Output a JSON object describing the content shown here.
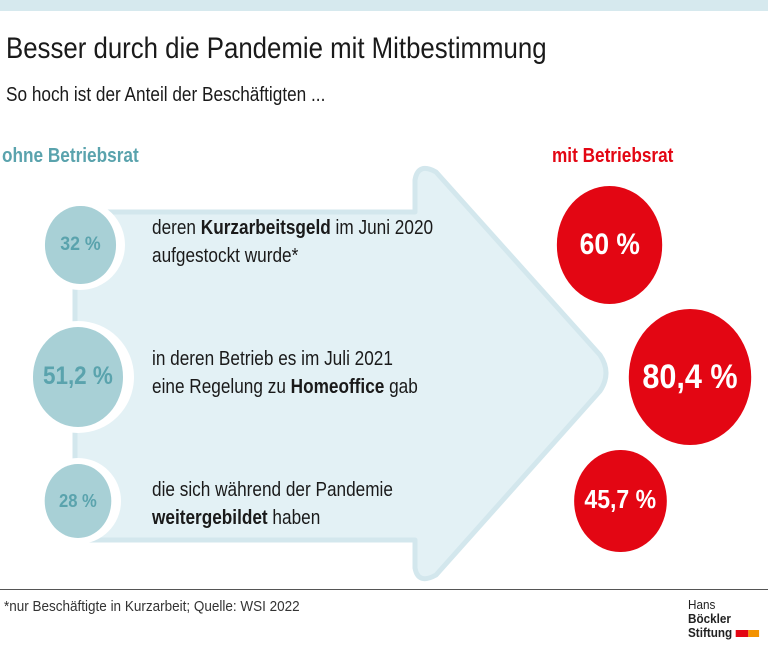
{
  "title": "Besser durch die Pandemie mit Mitbestimmung",
  "subtitle": "So hoch ist der Anteil der Beschäftigten ...",
  "headers": {
    "left": "ohne Betriebsrat",
    "right": "mit Betriebsrat"
  },
  "colors": {
    "without": "#a8d0d6",
    "with": "#e30613",
    "arrow": "#e3f1f5",
    "header_left": "#5aa3ad"
  },
  "rows": [
    {
      "pre": "deren ",
      "bold": "Kurzarbeitsgeld",
      "post": " im Juni 2020",
      "line2_pre": "aufgestockt wurde*",
      "line2_bold": "",
      "line2_post": "",
      "without_label": "32 %",
      "without_value": 32,
      "with_label": "60 %",
      "with_value": 60
    },
    {
      "pre": "in deren Betrieb es im Juli 2021",
      "bold": "",
      "post": "",
      "line2_pre": "eine Regelung zu ",
      "line2_bold": "Homeoffice",
      "line2_post": " gab",
      "without_label": "51,2 %",
      "without_value": 51.2,
      "with_label": "80,4 %",
      "with_value": 80.4
    },
    {
      "pre": "die sich während der Pandemie",
      "bold": "",
      "post": "",
      "line2_pre": "",
      "line2_bold": "weitergebildet",
      "line2_post": " haben",
      "without_label": "28 %",
      "without_value": 28,
      "with_label": "45,7 %",
      "with_value": 45.7
    }
  ],
  "footnote": "*nur Beschäftigte in Kurzarbeit; Quelle: WSI 2022",
  "logo": {
    "line1_a": "Hans ",
    "line1_b": "Böckler",
    "line2": "Stiftung"
  }
}
